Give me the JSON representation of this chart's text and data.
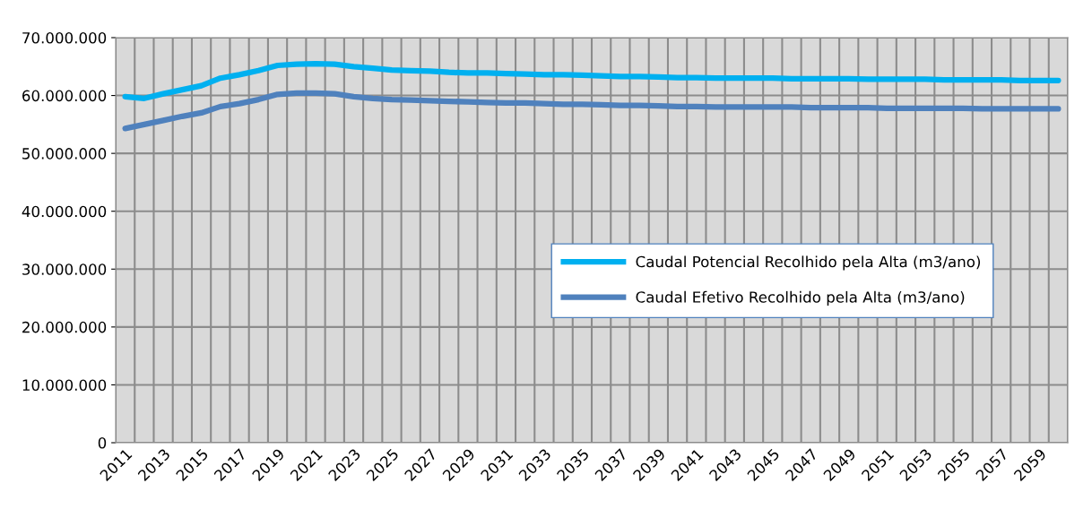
{
  "chart_data": {
    "type": "line",
    "categories": [
      "2011",
      null,
      "2013",
      null,
      "2015",
      null,
      "2017",
      null,
      "2019",
      null,
      "2021",
      null,
      "2023",
      null,
      "2025",
      null,
      "2027",
      null,
      "2029",
      null,
      "2031",
      null,
      "2033",
      null,
      "2035",
      null,
      "2037",
      null,
      "2039",
      null,
      "2041",
      null,
      "2043",
      null,
      "2045",
      null,
      "2047",
      null,
      "2049",
      null,
      "2051",
      null,
      "2053",
      null,
      "2055",
      null,
      "2057",
      null,
      "2059",
      null
    ],
    "series": [
      {
        "name": "Caudal Potencial Recolhido pela Alta (m3/ano)",
        "color": "#00b0f0",
        "values": [
          59800000,
          59500000,
          60300000,
          61000000,
          61700000,
          63000000,
          63600000,
          64300000,
          65200000,
          65400000,
          65500000,
          65400000,
          65000000,
          64700000,
          64400000,
          64300000,
          64200000,
          64000000,
          63900000,
          63900000,
          63800000,
          63700000,
          63600000,
          63600000,
          63500000,
          63400000,
          63300000,
          63300000,
          63200000,
          63100000,
          63100000,
          63000000,
          63000000,
          63000000,
          63000000,
          62900000,
          62900000,
          62900000,
          62900000,
          62800000,
          62800000,
          62800000,
          62800000,
          62700000,
          62700000,
          62700000,
          62700000,
          62600000,
          62600000,
          62600000
        ]
      },
      {
        "name": "Caudal Efetivo Recolhido pela Alta (m3/ano)",
        "color": "#4f81bd",
        "values": [
          54300000,
          55000000,
          55700000,
          56400000,
          57000000,
          58100000,
          58600000,
          59300000,
          60200000,
          60400000,
          60400000,
          60300000,
          59800000,
          59500000,
          59300000,
          59200000,
          59100000,
          59000000,
          58900000,
          58800000,
          58700000,
          58700000,
          58600000,
          58500000,
          58500000,
          58400000,
          58300000,
          58300000,
          58200000,
          58100000,
          58100000,
          58000000,
          58000000,
          58000000,
          58000000,
          58000000,
          57900000,
          57900000,
          57900000,
          57900000,
          57800000,
          57800000,
          57800000,
          57800000,
          57800000,
          57700000,
          57700000,
          57700000,
          57700000,
          57700000
        ]
      }
    ],
    "ylim": [
      0,
      70000000
    ],
    "yticks": [
      {
        "value": 0,
        "label": "0"
      },
      {
        "value": 10000000,
        "label": "10.000.000"
      },
      {
        "value": 20000000,
        "label": "20.000.000"
      },
      {
        "value": 30000000,
        "label": "30.000.000"
      },
      {
        "value": 40000000,
        "label": "40.000.000"
      },
      {
        "value": 50000000,
        "label": "50.000.000"
      },
      {
        "value": 60000000,
        "label": "60.000.000"
      },
      {
        "value": 70000000,
        "label": "70.000.000"
      }
    ],
    "grid": true,
    "legend": "right"
  }
}
